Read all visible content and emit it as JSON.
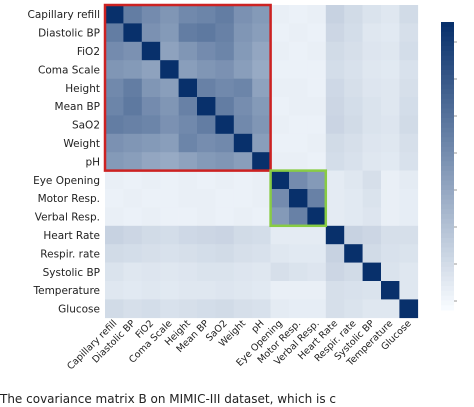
{
  "chart_data": {
    "type": "heatmap",
    "title": "",
    "labels": [
      "Capillary refill",
      "Diastolic BP",
      "FiO2",
      "Coma Scale",
      "Height",
      "Mean BP",
      "SaO2",
      "Weight",
      "pH",
      "Eye Opening",
      "Motor Resp.",
      "Verbal Resp.",
      "Heart Rate",
      "Respir. rate",
      "Systolic BP",
      "Temperature",
      "Glucose"
    ],
    "values": [
      [
        1.0,
        0.62,
        0.55,
        0.5,
        0.56,
        0.58,
        0.62,
        0.52,
        0.48,
        0.06,
        0.05,
        0.06,
        0.2,
        0.16,
        0.12,
        0.1,
        0.16
      ],
      [
        0.62,
        1.0,
        0.52,
        0.48,
        0.62,
        0.64,
        0.6,
        0.5,
        0.46,
        0.05,
        0.06,
        0.05,
        0.18,
        0.15,
        0.1,
        0.09,
        0.14
      ],
      [
        0.55,
        0.52,
        1.0,
        0.44,
        0.5,
        0.55,
        0.58,
        0.48,
        0.42,
        0.06,
        0.05,
        0.06,
        0.16,
        0.14,
        0.11,
        0.1,
        0.15
      ],
      [
        0.5,
        0.48,
        0.44,
        1.0,
        0.46,
        0.5,
        0.52,
        0.46,
        0.4,
        0.05,
        0.05,
        0.05,
        0.15,
        0.13,
        0.1,
        0.09,
        0.13
      ],
      [
        0.56,
        0.62,
        0.5,
        0.46,
        1.0,
        0.6,
        0.56,
        0.58,
        0.44,
        0.06,
        0.06,
        0.05,
        0.17,
        0.14,
        0.11,
        0.1,
        0.14
      ],
      [
        0.58,
        0.64,
        0.55,
        0.5,
        0.6,
        1.0,
        0.62,
        0.54,
        0.48,
        0.05,
        0.06,
        0.06,
        0.18,
        0.15,
        0.12,
        0.1,
        0.15
      ],
      [
        0.62,
        0.6,
        0.58,
        0.52,
        0.56,
        0.62,
        1.0,
        0.56,
        0.5,
        0.06,
        0.05,
        0.05,
        0.19,
        0.16,
        0.12,
        0.11,
        0.16
      ],
      [
        0.52,
        0.5,
        0.48,
        0.46,
        0.58,
        0.54,
        0.56,
        1.0,
        0.46,
        0.05,
        0.05,
        0.06,
        0.16,
        0.14,
        0.11,
        0.1,
        0.14
      ],
      [
        0.48,
        0.46,
        0.42,
        0.4,
        0.44,
        0.48,
        0.5,
        0.46,
        1.0,
        0.06,
        0.06,
        0.05,
        0.15,
        0.13,
        0.1,
        0.09,
        0.13
      ],
      [
        0.06,
        0.05,
        0.06,
        0.05,
        0.06,
        0.05,
        0.06,
        0.05,
        0.06,
        1.0,
        0.55,
        0.48,
        0.08,
        0.1,
        0.14,
        0.06,
        0.08
      ],
      [
        0.05,
        0.06,
        0.05,
        0.05,
        0.06,
        0.06,
        0.05,
        0.05,
        0.06,
        0.55,
        1.0,
        0.6,
        0.08,
        0.09,
        0.12,
        0.06,
        0.07
      ],
      [
        0.06,
        0.05,
        0.06,
        0.05,
        0.05,
        0.06,
        0.05,
        0.06,
        0.05,
        0.48,
        0.6,
        1.0,
        0.08,
        0.09,
        0.11,
        0.06,
        0.07
      ],
      [
        0.2,
        0.18,
        0.16,
        0.15,
        0.17,
        0.18,
        0.19,
        0.16,
        0.15,
        0.08,
        0.08,
        0.08,
        1.0,
        0.2,
        0.18,
        0.14,
        0.14
      ],
      [
        0.16,
        0.15,
        0.14,
        0.13,
        0.14,
        0.15,
        0.16,
        0.14,
        0.13,
        0.1,
        0.09,
        0.09,
        0.2,
        1.0,
        0.16,
        0.13,
        0.12
      ],
      [
        0.12,
        0.1,
        0.11,
        0.1,
        0.11,
        0.12,
        0.12,
        0.11,
        0.1,
        0.14,
        0.12,
        0.11,
        0.18,
        0.16,
        1.0,
        0.12,
        0.1
      ],
      [
        0.1,
        0.09,
        0.1,
        0.09,
        0.1,
        0.1,
        0.11,
        0.1,
        0.09,
        0.06,
        0.06,
        0.06,
        0.14,
        0.13,
        0.12,
        1.0,
        0.1
      ],
      [
        0.16,
        0.14,
        0.15,
        0.13,
        0.14,
        0.15,
        0.16,
        0.14,
        0.13,
        0.08,
        0.07,
        0.07,
        0.14,
        0.12,
        0.1,
        0.1,
        1.0
      ]
    ],
    "color_scale": {
      "low": "#f7fbff",
      "high": "#08306b"
    },
    "highlight_boxes": [
      {
        "start": 0,
        "end": 8,
        "color": "#cc2222"
      },
      {
        "start": 9,
        "end": 11,
        "color": "#88cc44"
      }
    ],
    "colorbar": {
      "shown": true,
      "placement": "right",
      "tick_labels_visible": false
    }
  },
  "caption": "The covariance matrix B on MIMIC-III dataset, which is c"
}
